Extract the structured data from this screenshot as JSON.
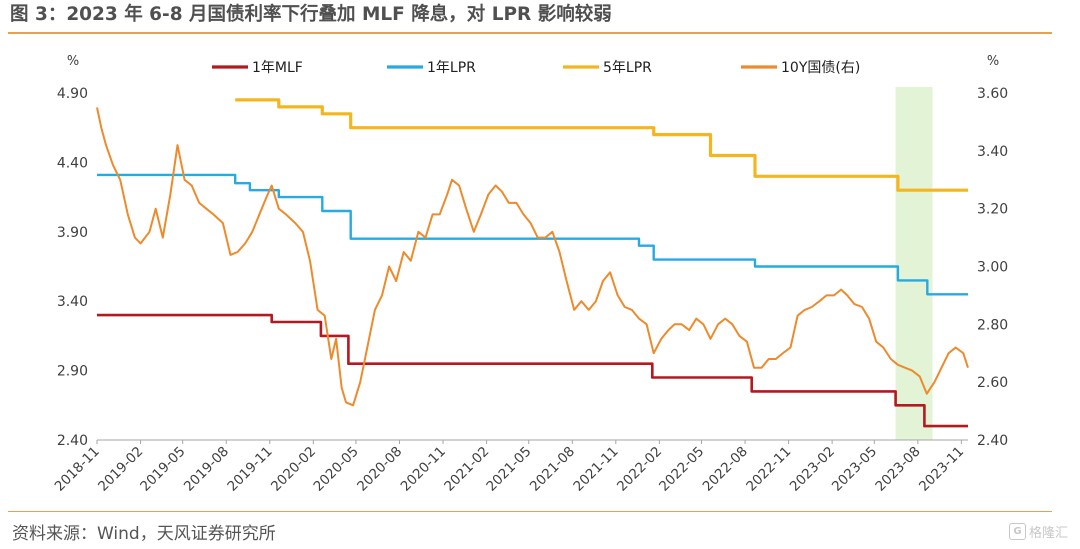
{
  "header": {
    "title": "图 3：2023 年 6-8 月国债利率下行叠加 MLF 降息，对 LPR 影响较弱"
  },
  "footer": {
    "source": "资料来源：Wind，天风证券研究所",
    "logo_text": "格隆汇",
    "logo_mark": "G"
  },
  "colors": {
    "mlf": "#b5181e",
    "lpr1": "#27aae1",
    "lpr5": "#f3b61f",
    "gov10y": "#ed8b2c",
    "highlight": "#e2f3d6",
    "axis_text": "#404040",
    "accent_rule": "#e8a04a"
  },
  "chart_data": {
    "type": "line",
    "left_axis": {
      "unit_label": "%",
      "ylim": [
        2.4,
        4.9
      ],
      "ticks": [
        "4.90",
        "4.40",
        "3.90",
        "3.40",
        "2.90",
        "2.40"
      ]
    },
    "right_axis": {
      "unit_label": "%",
      "ylim": [
        2.4,
        3.6
      ],
      "ticks": [
        "3.60",
        "3.40",
        "3.20",
        "3.00",
        "2.80",
        "2.60",
        "2.40"
      ]
    },
    "x_ticks": [
      "2018-11",
      "2019-02",
      "2019-05",
      "2019-08",
      "2019-11",
      "2020-02",
      "2020-05",
      "2020-08",
      "2020-11",
      "2021-02",
      "2021-05",
      "2021-08",
      "2021-11",
      "2022-02",
      "2022-05",
      "2022-08",
      "2022-11",
      "2023-02",
      "2023-05",
      "2023-08",
      "2023-11"
    ],
    "x_range": [
      "2018-11-01",
      "2023-11-15"
    ],
    "highlight_range": [
      "2023-06-15",
      "2023-09-01"
    ],
    "grid": false,
    "legend_position": "top",
    "series": [
      {
        "name": "1年MLF",
        "axis": "left",
        "step": true,
        "points": [
          [
            "2018-11-01",
            3.3
          ],
          [
            "2019-11-05",
            3.25
          ],
          [
            "2020-02-17",
            3.15
          ],
          [
            "2020-04-15",
            2.95
          ],
          [
            "2022-01-17",
            2.85
          ],
          [
            "2022-08-15",
            2.75
          ],
          [
            "2023-06-15",
            2.65
          ],
          [
            "2023-08-15",
            2.5
          ],
          [
            "2023-11-15",
            2.5
          ]
        ]
      },
      {
        "name": "1年LPR",
        "axis": "left",
        "step": true,
        "points": [
          [
            "2018-11-01",
            4.31
          ],
          [
            "2019-08-20",
            4.25
          ],
          [
            "2019-09-20",
            4.2
          ],
          [
            "2019-11-20",
            4.15
          ],
          [
            "2020-02-20",
            4.05
          ],
          [
            "2020-04-20",
            3.85
          ],
          [
            "2021-12-20",
            3.8
          ],
          [
            "2022-01-20",
            3.7
          ],
          [
            "2022-08-22",
            3.65
          ],
          [
            "2023-06-20",
            3.55
          ],
          [
            "2023-08-21",
            3.45
          ],
          [
            "2023-11-15",
            3.45
          ]
        ]
      },
      {
        "name": "5年LPR",
        "axis": "left",
        "step": true,
        "points": [
          [
            "2019-08-20",
            4.85
          ],
          [
            "2019-11-20",
            4.8
          ],
          [
            "2020-02-20",
            4.75
          ],
          [
            "2020-04-20",
            4.65
          ],
          [
            "2022-01-20",
            4.6
          ],
          [
            "2022-05-20",
            4.45
          ],
          [
            "2022-08-22",
            4.3
          ],
          [
            "2023-06-20",
            4.2
          ],
          [
            "2023-11-15",
            4.2
          ]
        ]
      },
      {
        "name": "10Y国债(右)",
        "axis": "right",
        "step": false,
        "points": [
          [
            "2018-11-01",
            3.55
          ],
          [
            "2018-11-10",
            3.48
          ],
          [
            "2018-11-20",
            3.42
          ],
          [
            "2018-12-05",
            3.35
          ],
          [
            "2018-12-20",
            3.3
          ],
          [
            "2019-01-05",
            3.18
          ],
          [
            "2019-01-20",
            3.1
          ],
          [
            "2019-02-01",
            3.08
          ],
          [
            "2019-02-20",
            3.12
          ],
          [
            "2019-03-05",
            3.2
          ],
          [
            "2019-03-20",
            3.1
          ],
          [
            "2019-04-05",
            3.25
          ],
          [
            "2019-04-20",
            3.42
          ],
          [
            "2019-05-05",
            3.3
          ],
          [
            "2019-05-20",
            3.28
          ],
          [
            "2019-06-05",
            3.22
          ],
          [
            "2019-06-20",
            3.2
          ],
          [
            "2019-07-05",
            3.18
          ],
          [
            "2019-07-25",
            3.15
          ],
          [
            "2019-08-10",
            3.04
          ],
          [
            "2019-08-25",
            3.05
          ],
          [
            "2019-09-10",
            3.08
          ],
          [
            "2019-09-25",
            3.12
          ],
          [
            "2019-10-10",
            3.18
          ],
          [
            "2019-10-25",
            3.24
          ],
          [
            "2019-11-05",
            3.28
          ],
          [
            "2019-11-20",
            3.2
          ],
          [
            "2019-12-05",
            3.18
          ],
          [
            "2019-12-25",
            3.15
          ],
          [
            "2020-01-10",
            3.12
          ],
          [
            "2020-01-25",
            3.02
          ],
          [
            "2020-02-10",
            2.85
          ],
          [
            "2020-02-25",
            2.83
          ],
          [
            "2020-03-10",
            2.68
          ],
          [
            "2020-03-20",
            2.75
          ],
          [
            "2020-04-01",
            2.58
          ],
          [
            "2020-04-10",
            2.53
          ],
          [
            "2020-04-25",
            2.52
          ],
          [
            "2020-05-10",
            2.6
          ],
          [
            "2020-05-25",
            2.72
          ],
          [
            "2020-06-10",
            2.85
          ],
          [
            "2020-06-25",
            2.9
          ],
          [
            "2020-07-10",
            3.0
          ],
          [
            "2020-07-25",
            2.95
          ],
          [
            "2020-08-10",
            3.05
          ],
          [
            "2020-08-25",
            3.02
          ],
          [
            "2020-09-10",
            3.12
          ],
          [
            "2020-09-25",
            3.1
          ],
          [
            "2020-10-10",
            3.18
          ],
          [
            "2020-10-25",
            3.18
          ],
          [
            "2020-11-10",
            3.25
          ],
          [
            "2020-11-20",
            3.3
          ],
          [
            "2020-12-05",
            3.28
          ],
          [
            "2020-12-20",
            3.2
          ],
          [
            "2021-01-05",
            3.12
          ],
          [
            "2021-01-20",
            3.18
          ],
          [
            "2021-02-05",
            3.25
          ],
          [
            "2021-02-20",
            3.28
          ],
          [
            "2021-03-05",
            3.26
          ],
          [
            "2021-03-20",
            3.22
          ],
          [
            "2021-04-05",
            3.22
          ],
          [
            "2021-04-20",
            3.18
          ],
          [
            "2021-05-05",
            3.15
          ],
          [
            "2021-05-20",
            3.1
          ],
          [
            "2021-06-05",
            3.1
          ],
          [
            "2021-06-20",
            3.12
          ],
          [
            "2021-07-05",
            3.05
          ],
          [
            "2021-07-20",
            2.95
          ],
          [
            "2021-08-05",
            2.85
          ],
          [
            "2021-08-20",
            2.88
          ],
          [
            "2021-09-05",
            2.85
          ],
          [
            "2021-09-20",
            2.88
          ],
          [
            "2021-10-05",
            2.95
          ],
          [
            "2021-10-20",
            2.98
          ],
          [
            "2021-11-05",
            2.9
          ],
          [
            "2021-11-20",
            2.86
          ],
          [
            "2021-12-05",
            2.85
          ],
          [
            "2021-12-20",
            2.82
          ],
          [
            "2022-01-05",
            2.8
          ],
          [
            "2022-01-20",
            2.7
          ],
          [
            "2022-02-05",
            2.75
          ],
          [
            "2022-02-20",
            2.78
          ],
          [
            "2022-03-05",
            2.8
          ],
          [
            "2022-03-20",
            2.8
          ],
          [
            "2022-04-05",
            2.78
          ],
          [
            "2022-04-20",
            2.82
          ],
          [
            "2022-05-05",
            2.8
          ],
          [
            "2022-05-20",
            2.75
          ],
          [
            "2022-06-05",
            2.8
          ],
          [
            "2022-06-20",
            2.82
          ],
          [
            "2022-07-05",
            2.8
          ],
          [
            "2022-07-20",
            2.76
          ],
          [
            "2022-08-05",
            2.74
          ],
          [
            "2022-08-20",
            2.65
          ],
          [
            "2022-09-05",
            2.65
          ],
          [
            "2022-09-20",
            2.68
          ],
          [
            "2022-10-05",
            2.68
          ],
          [
            "2022-10-20",
            2.7
          ],
          [
            "2022-11-05",
            2.72
          ],
          [
            "2022-11-20",
            2.83
          ],
          [
            "2022-12-05",
            2.85
          ],
          [
            "2022-12-20",
            2.86
          ],
          [
            "2023-01-05",
            2.88
          ],
          [
            "2023-01-20",
            2.9
          ],
          [
            "2023-02-05",
            2.9
          ],
          [
            "2023-02-20",
            2.92
          ],
          [
            "2023-03-05",
            2.9
          ],
          [
            "2023-03-20",
            2.87
          ],
          [
            "2023-04-05",
            2.86
          ],
          [
            "2023-04-20",
            2.82
          ],
          [
            "2023-05-05",
            2.74
          ],
          [
            "2023-05-20",
            2.72
          ],
          [
            "2023-06-05",
            2.68
          ],
          [
            "2023-06-20",
            2.66
          ],
          [
            "2023-07-05",
            2.65
          ],
          [
            "2023-07-20",
            2.64
          ],
          [
            "2023-08-05",
            2.62
          ],
          [
            "2023-08-20",
            2.56
          ],
          [
            "2023-09-05",
            2.6
          ],
          [
            "2023-09-20",
            2.65
          ],
          [
            "2023-10-05",
            2.7
          ],
          [
            "2023-10-20",
            2.72
          ],
          [
            "2023-11-05",
            2.7
          ],
          [
            "2023-11-15",
            2.65
          ]
        ]
      }
    ]
  }
}
